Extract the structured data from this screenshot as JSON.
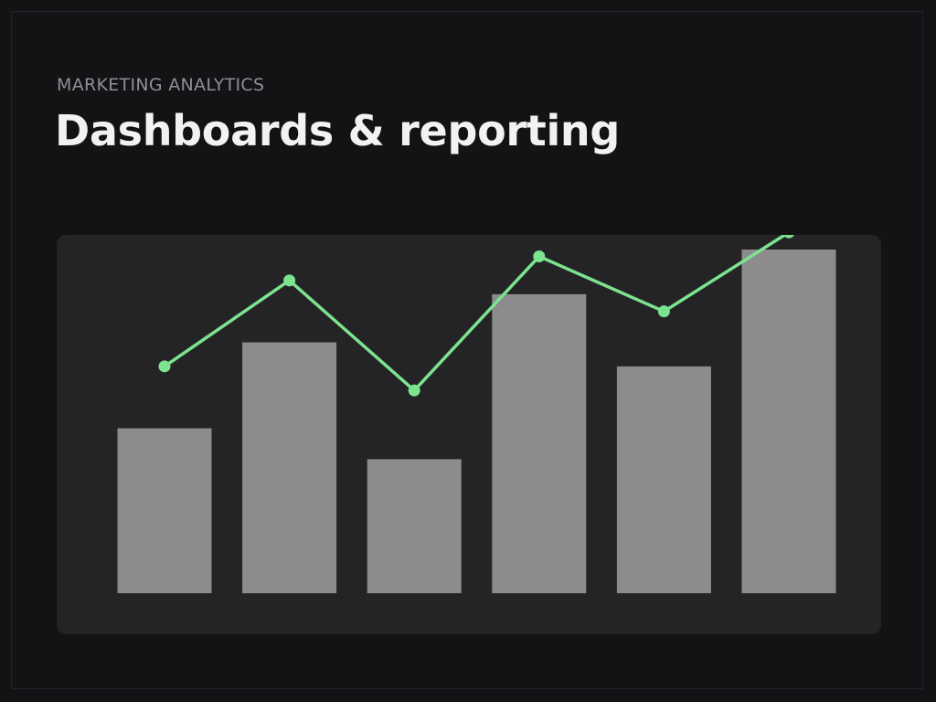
{
  "header": {
    "eyebrow": "MARKETING ANALYTICS",
    "title": "Dashboards & reporting"
  },
  "chart_data": {
    "type": "bar",
    "categories": [
      "",
      "",
      "",
      "",
      "",
      ""
    ],
    "title": "",
    "xlabel": "",
    "ylabel": "",
    "ylim": [
      0,
      100
    ],
    "grid": false,
    "legend": "none",
    "series": [
      {
        "type": "bar",
        "values": [
          48,
          73,
          39,
          87,
          66,
          100
        ],
        "color": "#8c8c8e"
      },
      {
        "type": "line",
        "values": [
          66,
          91,
          59,
          98,
          82,
          105
        ],
        "color": "#7ce38f"
      }
    ]
  },
  "colors": {
    "background": "#131315",
    "panel": "#242427",
    "bar": "#8c8c8e",
    "line": "#7ce38f"
  }
}
